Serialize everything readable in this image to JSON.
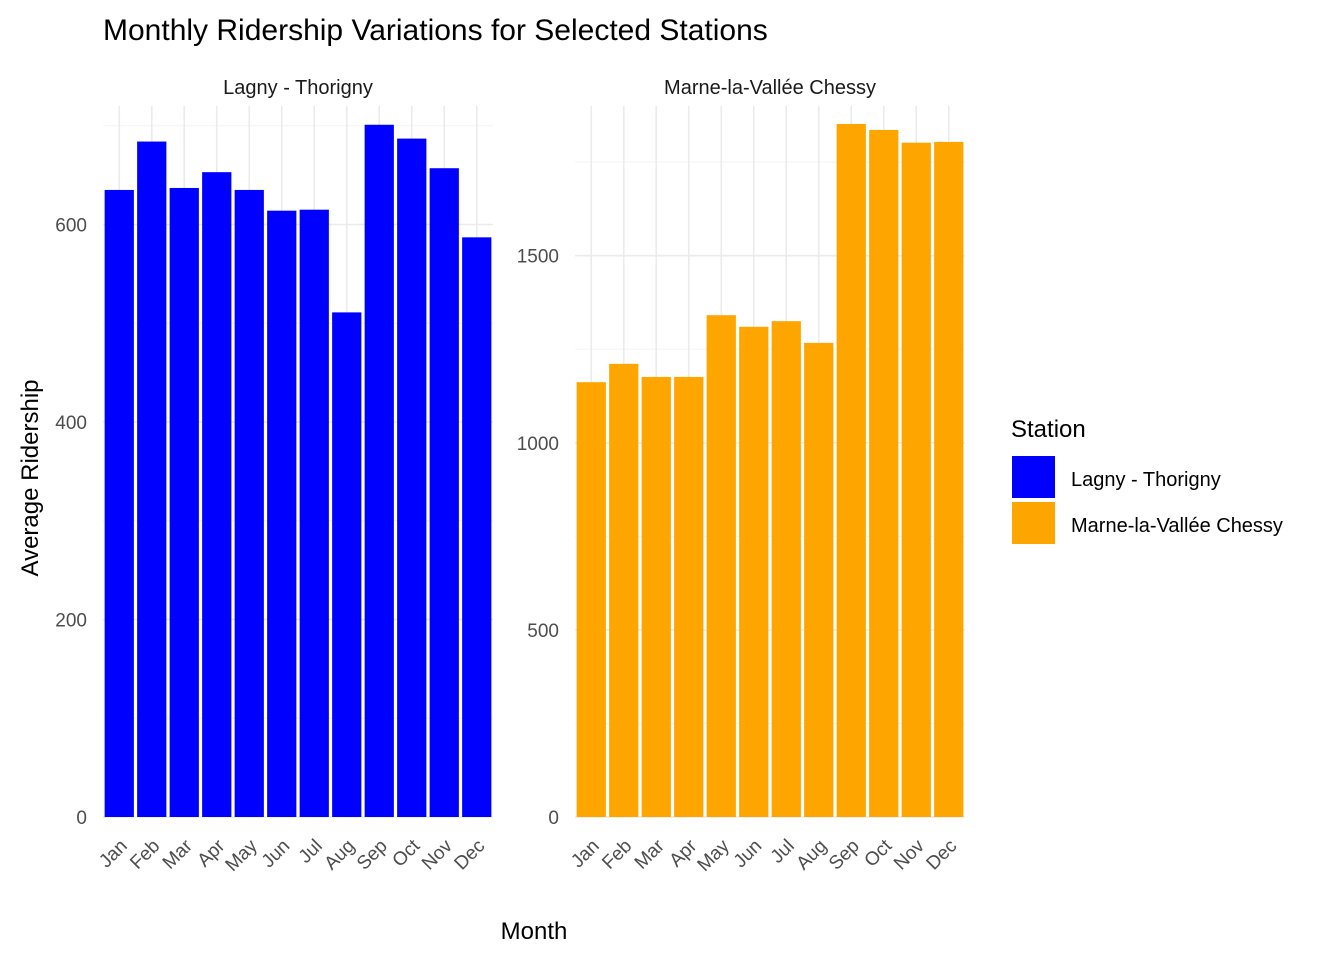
{
  "chart_data": {
    "type": "bar",
    "title": "Monthly Ridership Variations for Selected Stations",
    "xlabel": "Month",
    "ylabel": "Average Ridership",
    "categories": [
      "Jan",
      "Feb",
      "Mar",
      "Apr",
      "May",
      "Jun",
      "Jul",
      "Aug",
      "Sep",
      "Oct",
      "Nov",
      "Dec"
    ],
    "grid": true,
    "legend_position": "right",
    "legend": {
      "title": "Station",
      "entries": [
        {
          "label": "Lagny - Thorigny",
          "color": "#0000FF"
        },
        {
          "label": "Marne-la-Vallée Chessy",
          "color": "#FFA500"
        }
      ]
    },
    "facets": [
      {
        "label": "Lagny - Thorigny",
        "color": "#0000FF",
        "values": [
          635,
          684,
          637,
          653,
          635,
          614,
          615,
          511,
          701,
          687,
          657,
          587
        ],
        "ylim": [
          0,
          720
        ],
        "yticks": [
          0,
          200,
          400,
          600
        ]
      },
      {
        "label": "Marne-la-Vallée Chessy",
        "color": "#FFA500",
        "values": [
          1162,
          1211,
          1176,
          1176,
          1341,
          1310,
          1325,
          1267,
          1852,
          1836,
          1802,
          1804
        ],
        "ylim": [
          0,
          1900
        ],
        "yticks": [
          0,
          500,
          1000,
          1500
        ]
      }
    ]
  }
}
